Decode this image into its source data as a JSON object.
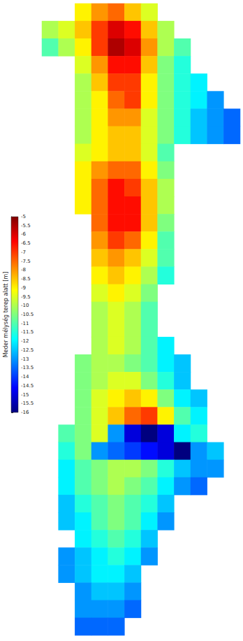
{
  "chart_data": {
    "type": "heatmap",
    "tick_labels": false,
    "cells": [
      [
        null,
        null,
        -9,
        -8,
        -7.5,
        -8.5,
        -9.5,
        null,
        null,
        null,
        null,
        null
      ],
      [
        -10,
        -9.5,
        -8.5,
        -7,
        -6,
        -6.5,
        -8.5,
        -10,
        null,
        null,
        null,
        null
      ],
      [
        -11,
        -10,
        -9,
        -7,
        -5.5,
        -6,
        -8,
        -10,
        -11,
        null,
        null,
        null
      ],
      [
        null,
        null,
        -9.5,
        -8,
        -6.5,
        -6.5,
        -8.5,
        -10.5,
        -11.5,
        null,
        null,
        null
      ],
      [
        null,
        null,
        -10,
        -8.5,
        -7,
        -7,
        -9,
        -10.5,
        -11.5,
        -12,
        null,
        null
      ],
      [
        null,
        null,
        -10,
        -9,
        -7.5,
        -7,
        -9,
        -10.5,
        -11.5,
        -12,
        -13,
        null
      ],
      [
        null,
        null,
        -10,
        -9,
        -8,
        -8,
        -9.5,
        -10.5,
        -11.5,
        -12.5,
        -13,
        -13.5
      ],
      [
        null,
        null,
        -10,
        -9,
        -8.5,
        -8.5,
        -9.5,
        -10.5,
        -11.5,
        -12.5,
        -13,
        -13.5
      ],
      [
        null,
        null,
        -9.5,
        -9,
        -8.5,
        -8.5,
        -9.5,
        -11,
        null,
        null,
        null,
        null
      ],
      [
        null,
        null,
        -9,
        -8,
        -7.5,
        -7.5,
        -9,
        -10.5,
        null,
        null,
        null,
        null
      ],
      [
        null,
        null,
        -9,
        -7.5,
        -6.5,
        -7,
        -8.5,
        -10,
        null,
        null,
        null,
        null
      ],
      [
        null,
        null,
        -9,
        -7.5,
        -6.5,
        -6.5,
        -8.5,
        -10,
        null,
        null,
        null,
        null
      ],
      [
        null,
        null,
        null,
        -7.5,
        -6.5,
        -6.5,
        -8.5,
        -10.5,
        null,
        null,
        null,
        null
      ],
      [
        null,
        null,
        null,
        -8,
        -7,
        -7.5,
        -9,
        -11,
        null,
        null,
        null,
        null
      ],
      [
        null,
        null,
        null,
        -8.5,
        -8,
        -8.5,
        -9.5,
        -11,
        null,
        null,
        null,
        null
      ],
      [
        null,
        null,
        null,
        -9,
        -8.5,
        -9,
        -10,
        -11.5,
        null,
        null,
        null,
        null
      ],
      [
        null,
        null,
        null,
        -9.5,
        -9,
        -9.5,
        -10.5,
        null,
        null,
        null,
        null,
        null
      ],
      [
        null,
        null,
        null,
        -10,
        -9.5,
        -10,
        -11,
        null,
        null,
        null,
        null,
        null
      ],
      [
        null,
        null,
        null,
        -10,
        -9.5,
        -10,
        -11,
        null,
        null,
        null,
        null,
        null
      ],
      [
        null,
        null,
        null,
        -10,
        -9.5,
        -10,
        -11,
        -12,
        null,
        null,
        null,
        null
      ],
      [
        null,
        null,
        -10.5,
        -10,
        -10,
        -10.5,
        -11,
        -12,
        -12.5,
        null,
        null,
        null
      ],
      [
        null,
        null,
        -10.5,
        -10,
        -9.5,
        -9.5,
        -10.5,
        -11.5,
        -12.5,
        null,
        null,
        null
      ],
      [
        null,
        null,
        -10.5,
        -9.5,
        -9,
        -8.5,
        -9,
        -10.5,
        -12,
        -12.5,
        null,
        null
      ],
      [
        null,
        null,
        -10.5,
        -9.5,
        -8.5,
        -7.5,
        -7,
        -9,
        -11,
        -12,
        null,
        null
      ],
      [
        null,
        -11,
        -10.5,
        -9.5,
        -13,
        -15,
        -16,
        -15,
        -12,
        -11.5,
        null,
        null
      ],
      [
        null,
        -11.5,
        -10.5,
        -13,
        -13.5,
        -14,
        -14.5,
        -15,
        -16,
        -13,
        -12.5,
        null
      ],
      [
        null,
        -12,
        -11,
        -10.5,
        -10,
        -10,
        -10.5,
        -11.5,
        -12.5,
        -13,
        -13,
        null
      ],
      [
        null,
        -12,
        -11,
        -10.5,
        -10,
        -10.5,
        -11,
        -12,
        -13,
        -13.5,
        null,
        null
      ],
      [
        null,
        -12.5,
        -11.5,
        -11,
        -10.5,
        -11,
        -11.5,
        -12.5,
        null,
        null,
        null,
        null
      ],
      [
        null,
        -12.5,
        -12,
        -11,
        -10.5,
        -11,
        -12,
        -13,
        null,
        null,
        null,
        null
      ],
      [
        null,
        null,
        -12,
        -11.5,
        -11,
        -11.5,
        -12.5,
        null,
        null,
        null,
        null,
        null
      ],
      [
        null,
        -13,
        -12.5,
        -12,
        -11.5,
        -12,
        -13,
        null,
        null,
        null,
        null,
        null
      ],
      [
        null,
        -13,
        -12.5,
        -12,
        -12,
        -12.5,
        null,
        null,
        null,
        null,
        null,
        null
      ],
      [
        null,
        null,
        -13,
        -12.5,
        -12.5,
        -13,
        null,
        null,
        null,
        null,
        null,
        null
      ],
      [
        null,
        null,
        -13,
        -13,
        -13,
        -13.5,
        null,
        null,
        null,
        null,
        null,
        null
      ],
      [
        null,
        null,
        -13.5,
        -13.5,
        -13.5,
        null,
        null,
        null,
        null,
        null,
        null,
        null
      ]
    ],
    "colorbar": {
      "label": "Meder mélység terep alatt [m]",
      "range": [
        -16,
        -5
      ],
      "ticks": [
        -5,
        -5.5,
        -6,
        -6.5,
        -7,
        -7.5,
        -8,
        -8.5,
        -9,
        -9.5,
        -10,
        -10.5,
        -11,
        -11.5,
        -12,
        -12.5,
        -13,
        -13.5,
        -14,
        -14.5,
        -15,
        -15.5,
        -16
      ]
    }
  }
}
